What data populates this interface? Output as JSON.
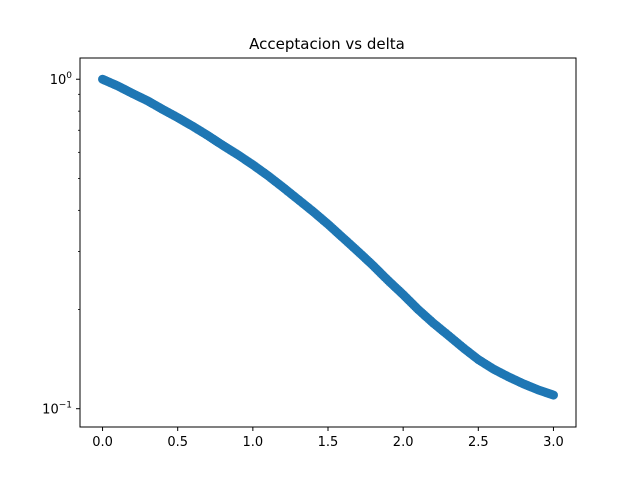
{
  "chart_data": {
    "type": "scatter",
    "title": "Acceptacion vs delta",
    "xlabel": "",
    "ylabel": "",
    "xlim": [
      -0.15,
      3.15
    ],
    "ylim": [
      0.088,
      1.16
    ],
    "y_scale": "log",
    "grid": false,
    "legend": "none",
    "marker_color": "#1f77b4",
    "x_ticks": [
      {
        "value": 0.0,
        "label": "0.0"
      },
      {
        "value": 0.5,
        "label": "0.5"
      },
      {
        "value": 1.0,
        "label": "1.0"
      },
      {
        "value": 1.5,
        "label": "1.5"
      },
      {
        "value": 2.0,
        "label": "2.0"
      },
      {
        "value": 2.5,
        "label": "2.5"
      },
      {
        "value": 3.0,
        "label": "3.0"
      }
    ],
    "y_ticks": [
      {
        "value": 1.0,
        "base": "10",
        "exp": "0"
      },
      {
        "value": 0.1,
        "base": "10",
        "exp": "−1"
      }
    ],
    "series": [
      {
        "x": [
          0.0,
          0.1,
          0.2,
          0.3,
          0.4,
          0.5,
          0.6,
          0.7,
          0.8,
          0.9,
          1.0,
          1.1,
          1.2,
          1.3,
          1.4,
          1.5,
          1.6,
          1.7,
          1.8,
          1.9,
          2.0,
          2.1,
          2.2,
          2.3,
          2.4,
          2.5,
          2.6,
          2.7,
          2.8,
          2.9,
          3.0
        ],
        "y": [
          1.0,
          0.955,
          0.905,
          0.86,
          0.81,
          0.765,
          0.72,
          0.675,
          0.63,
          0.59,
          0.55,
          0.51,
          0.47,
          0.432,
          0.397,
          0.363,
          0.33,
          0.3,
          0.272,
          0.245,
          0.222,
          0.2,
          0.182,
          0.167,
          0.153,
          0.141,
          0.132,
          0.125,
          0.119,
          0.114,
          0.11
        ]
      }
    ]
  }
}
